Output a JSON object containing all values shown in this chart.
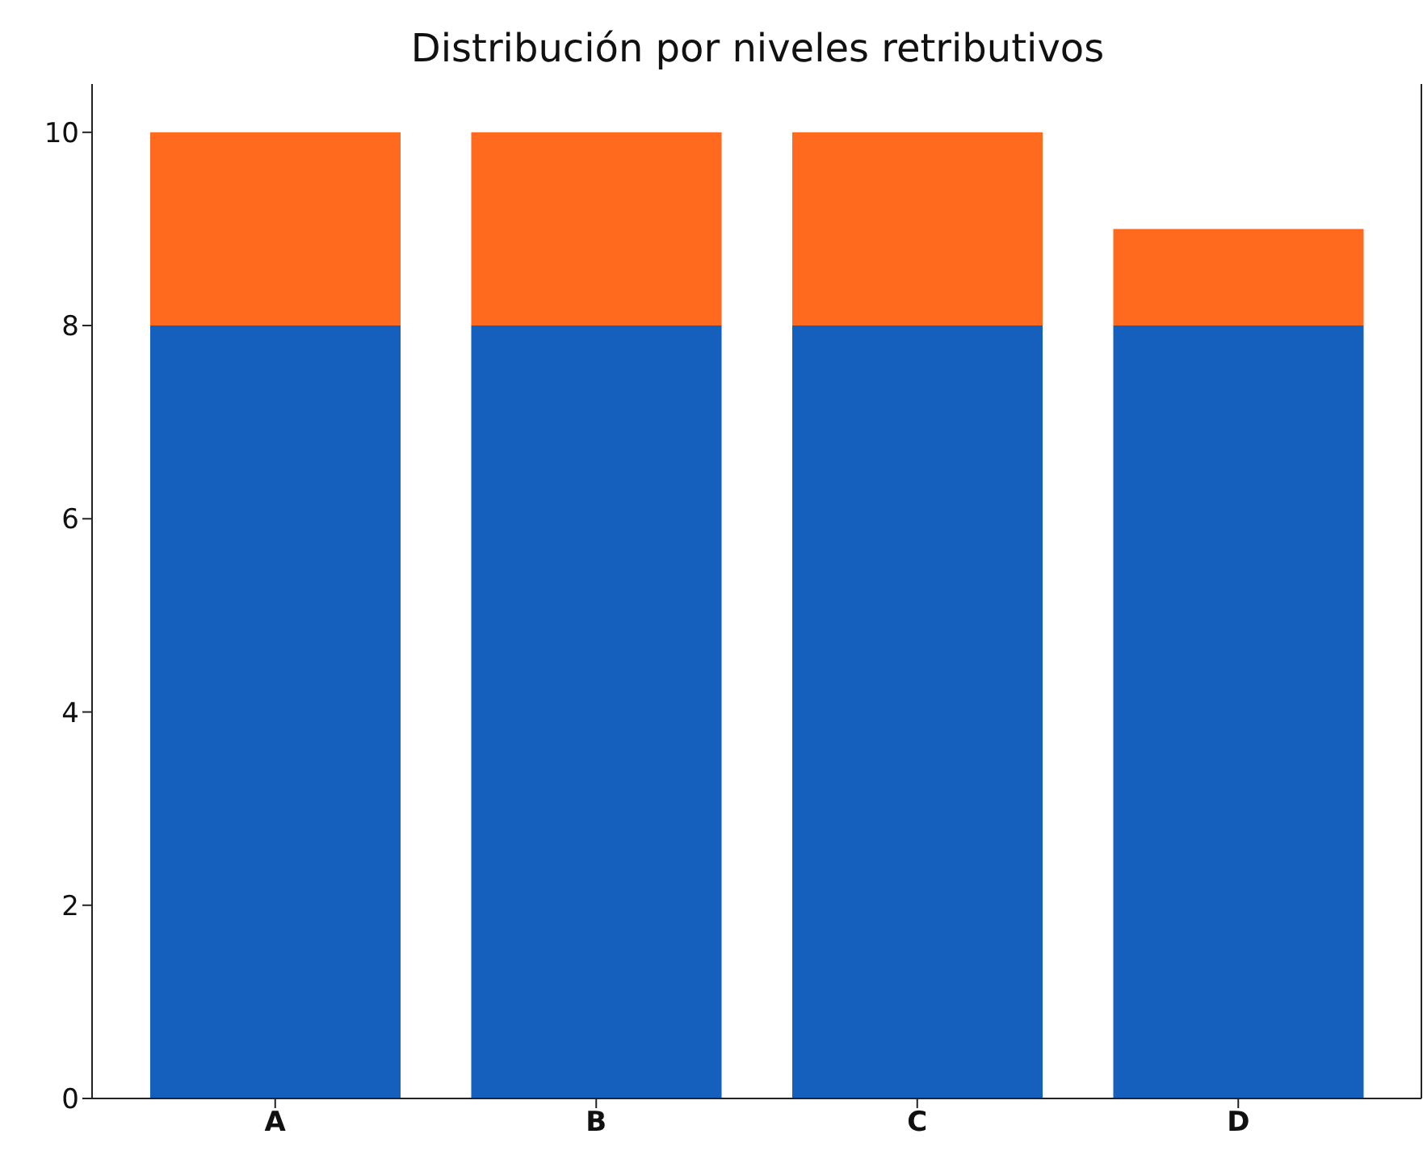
{
  "chart_data": {
    "type": "bar",
    "title": "Distribución por niveles retributivos",
    "categories": [
      "A",
      "B",
      "C",
      "D"
    ],
    "stacked": true,
    "series": [
      {
        "color": "#1560bd",
        "values": [
          8,
          8,
          8,
          8
        ]
      },
      {
        "color": "#ff6a1f",
        "values": [
          2,
          2,
          2,
          1
        ]
      }
    ],
    "ylim": [
      0,
      10.5
    ],
    "yticks": [
      0,
      2,
      4,
      6,
      8,
      10
    ],
    "grid": false,
    "legend": false
  }
}
